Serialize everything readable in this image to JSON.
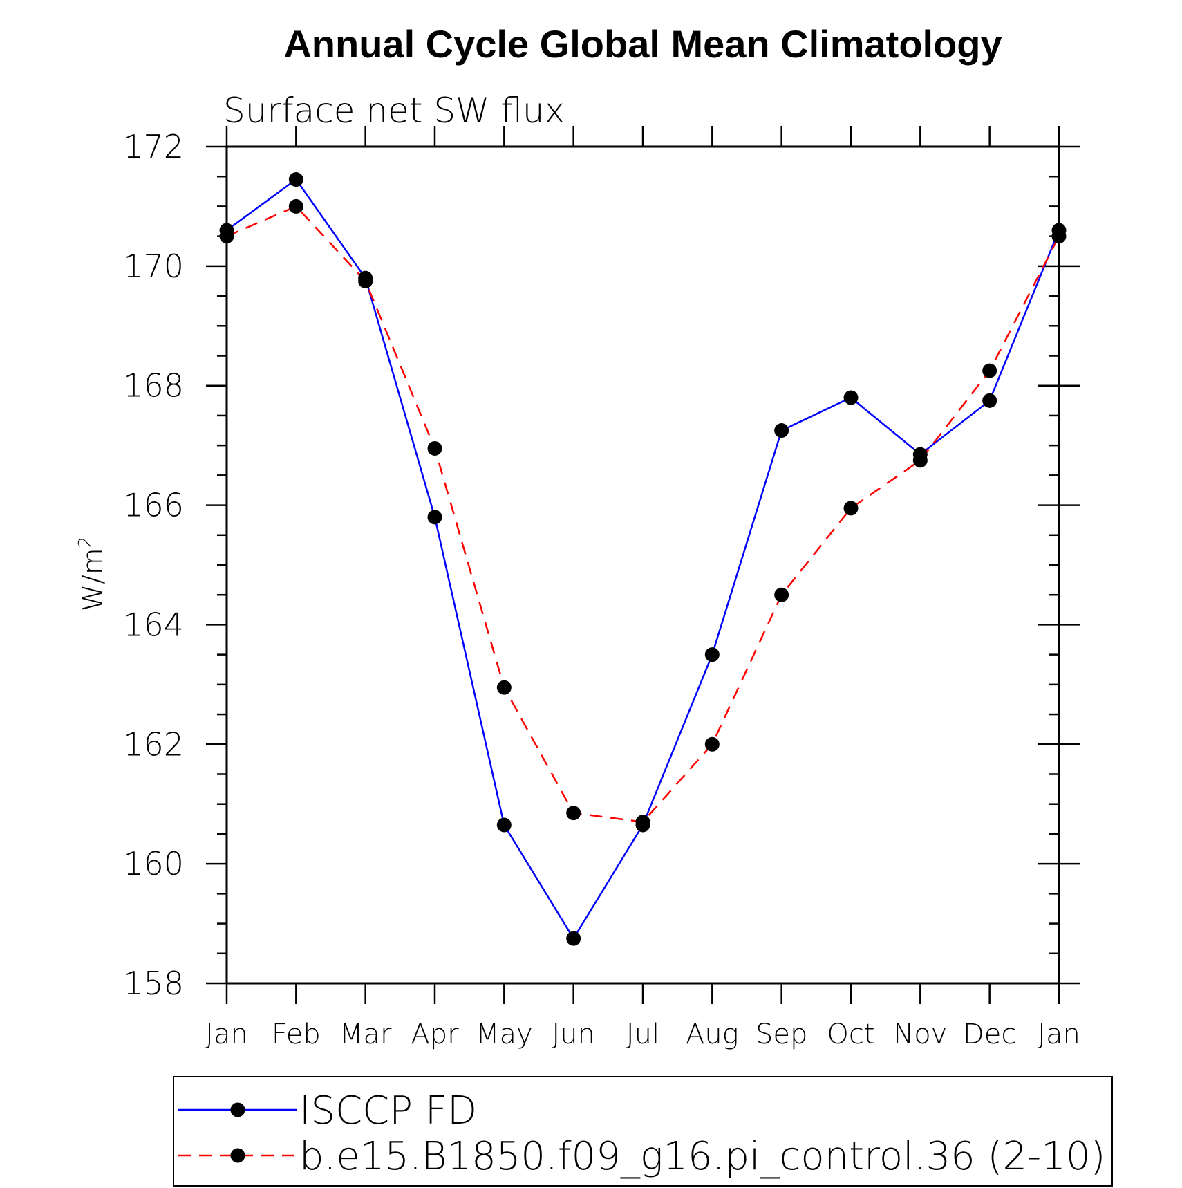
{
  "chart_data": {
    "type": "line",
    "title": "Annual Cycle Global Mean Climatology",
    "subtitle": "Surface net SW flux",
    "ylabel_base": "W/m",
    "ylabel_sup": "2",
    "xlabel": "",
    "categories": [
      "Jan",
      "Feb",
      "Mar",
      "Apr",
      "May",
      "Jun",
      "Jul",
      "Aug",
      "Sep",
      "Oct",
      "Nov",
      "Dec",
      "Jan"
    ],
    "ylim": [
      158,
      172
    ],
    "yticks": [
      "158",
      "160",
      "162",
      "164",
      "166",
      "168",
      "170",
      "172"
    ],
    "series": [
      {
        "name": "ISCCP FD",
        "color": "#0000ff",
        "style": "solid",
        "values": [
          170.6,
          171.45,
          169.8,
          165.8,
          160.65,
          158.75,
          160.65,
          163.5,
          167.25,
          167.8,
          166.85,
          167.75,
          170.6
        ]
      },
      {
        "name": "b.e15.B1850.f09_g16.pi_control.36 (2-10)",
        "color": "#ff0000",
        "style": "dashed",
        "values": [
          170.5,
          171.0,
          169.75,
          166.95,
          162.95,
          160.85,
          160.7,
          162.0,
          164.5,
          165.95,
          166.75,
          168.25,
          170.5
        ]
      }
    ],
    "marker_color": "#000000",
    "grid": false,
    "legend_position": "bottom"
  }
}
